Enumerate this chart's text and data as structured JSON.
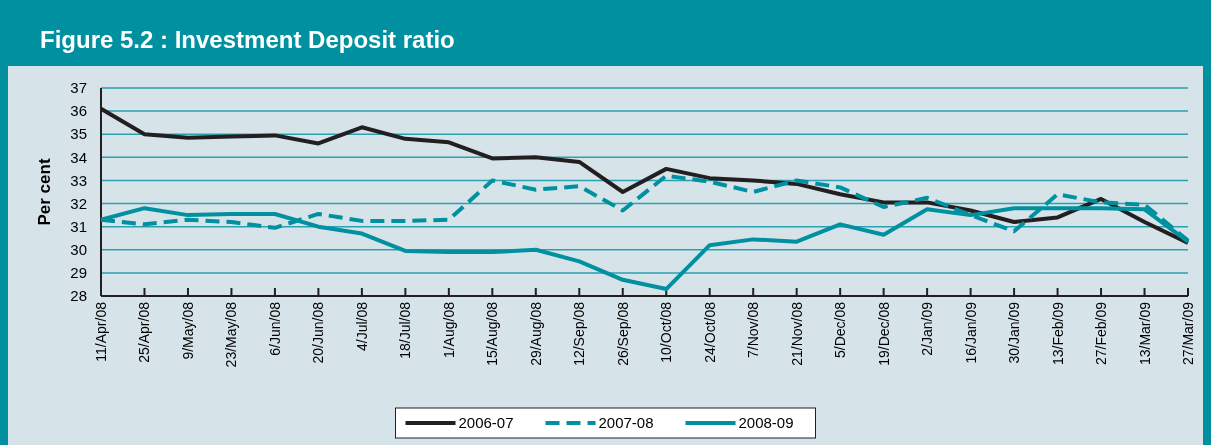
{
  "chart_data": {
    "type": "line",
    "title": "Figure 5.2 : Investment Deposit ratio",
    "ylabel": "Per cent",
    "categories": [
      "11/Apr/08",
      "25/Apr/08",
      "9/May/08",
      "23/May/08",
      "6/Jun/08",
      "20/Jun/08",
      "4/Jul/08",
      "18/Jul/08",
      "1/Aug/08",
      "15/Aug/08",
      "29/Aug/08",
      "12/Sep/08",
      "26/Sep/08",
      "10/Oct/08",
      "24/Oct/08",
      "7/Nov/08",
      "21/Nov/08",
      "5/Dec/08",
      "19/Dec/08",
      "2/Jan/09",
      "16/Jan/09",
      "30/Jan/09",
      "13/Feb/09",
      "27/Feb/09",
      "13/Mar/09",
      "27/Mar/09"
    ],
    "series": [
      {
        "name": "2006-07",
        "color": "#231f20",
        "line_style": "solid",
        "values": [
          36.1,
          35.0,
          34.85,
          34.9,
          34.95,
          34.6,
          35.3,
          34.8,
          34.65,
          33.95,
          34.0,
          33.8,
          32.5,
          33.5,
          33.1,
          33.0,
          32.85,
          32.4,
          32.05,
          32.05,
          31.7,
          31.2,
          31.4,
          32.2,
          31.2,
          30.3
        ]
      },
      {
        "name": "2007-08",
        "color": "#0090a0",
        "line_style": "dashed",
        "values": [
          31.3,
          31.1,
          31.3,
          31.2,
          30.95,
          31.55,
          31.25,
          31.25,
          31.3,
          33.0,
          32.6,
          32.75,
          31.7,
          33.2,
          32.95,
          32.5,
          33.0,
          32.7,
          31.85,
          32.25,
          31.5,
          30.8,
          32.4,
          32.05,
          31.95,
          30.4
        ]
      },
      {
        "name": "2008-09",
        "color": "#0090a0",
        "line_style": "solid",
        "values": [
          31.3,
          31.8,
          31.5,
          31.55,
          31.55,
          31.0,
          30.7,
          29.95,
          29.9,
          29.9,
          30.0,
          29.5,
          28.7,
          28.3,
          30.2,
          30.45,
          30.35,
          31.1,
          30.65,
          31.75,
          31.5,
          31.8,
          31.8,
          31.8,
          31.75,
          30.35
        ]
      }
    ],
    "ylim": [
      28,
      37
    ],
    "yticks": [
      28,
      29,
      30,
      31,
      32,
      33,
      34,
      35,
      36,
      37
    ],
    "grid": "y",
    "legend": "bottom",
    "marker": "none"
  }
}
